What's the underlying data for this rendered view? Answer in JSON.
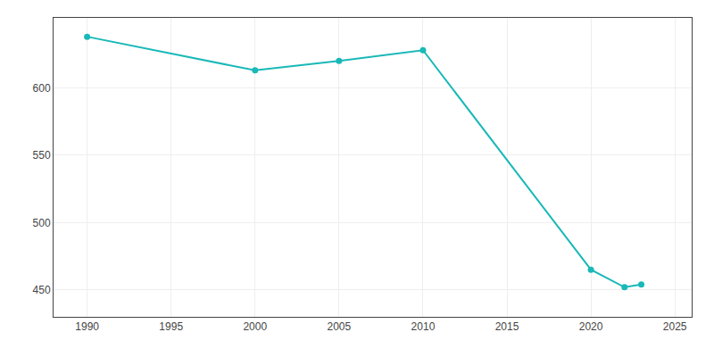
{
  "chart_data": {
    "type": "line",
    "x": [
      1990,
      2000,
      2005,
      2010,
      2020,
      2022,
      2023
    ],
    "values": [
      638,
      613,
      620,
      628,
      465,
      452,
      454
    ],
    "color": "#1ab8b8",
    "marker": "circle",
    "xlim": [
      1988,
      2026
    ],
    "ylim": [
      430,
      652
    ],
    "xticks": [
      1990,
      1995,
      2000,
      2005,
      2010,
      2015,
      2020,
      2025
    ],
    "yticks": [
      450,
      500,
      550,
      600
    ],
    "grid": true
  }
}
